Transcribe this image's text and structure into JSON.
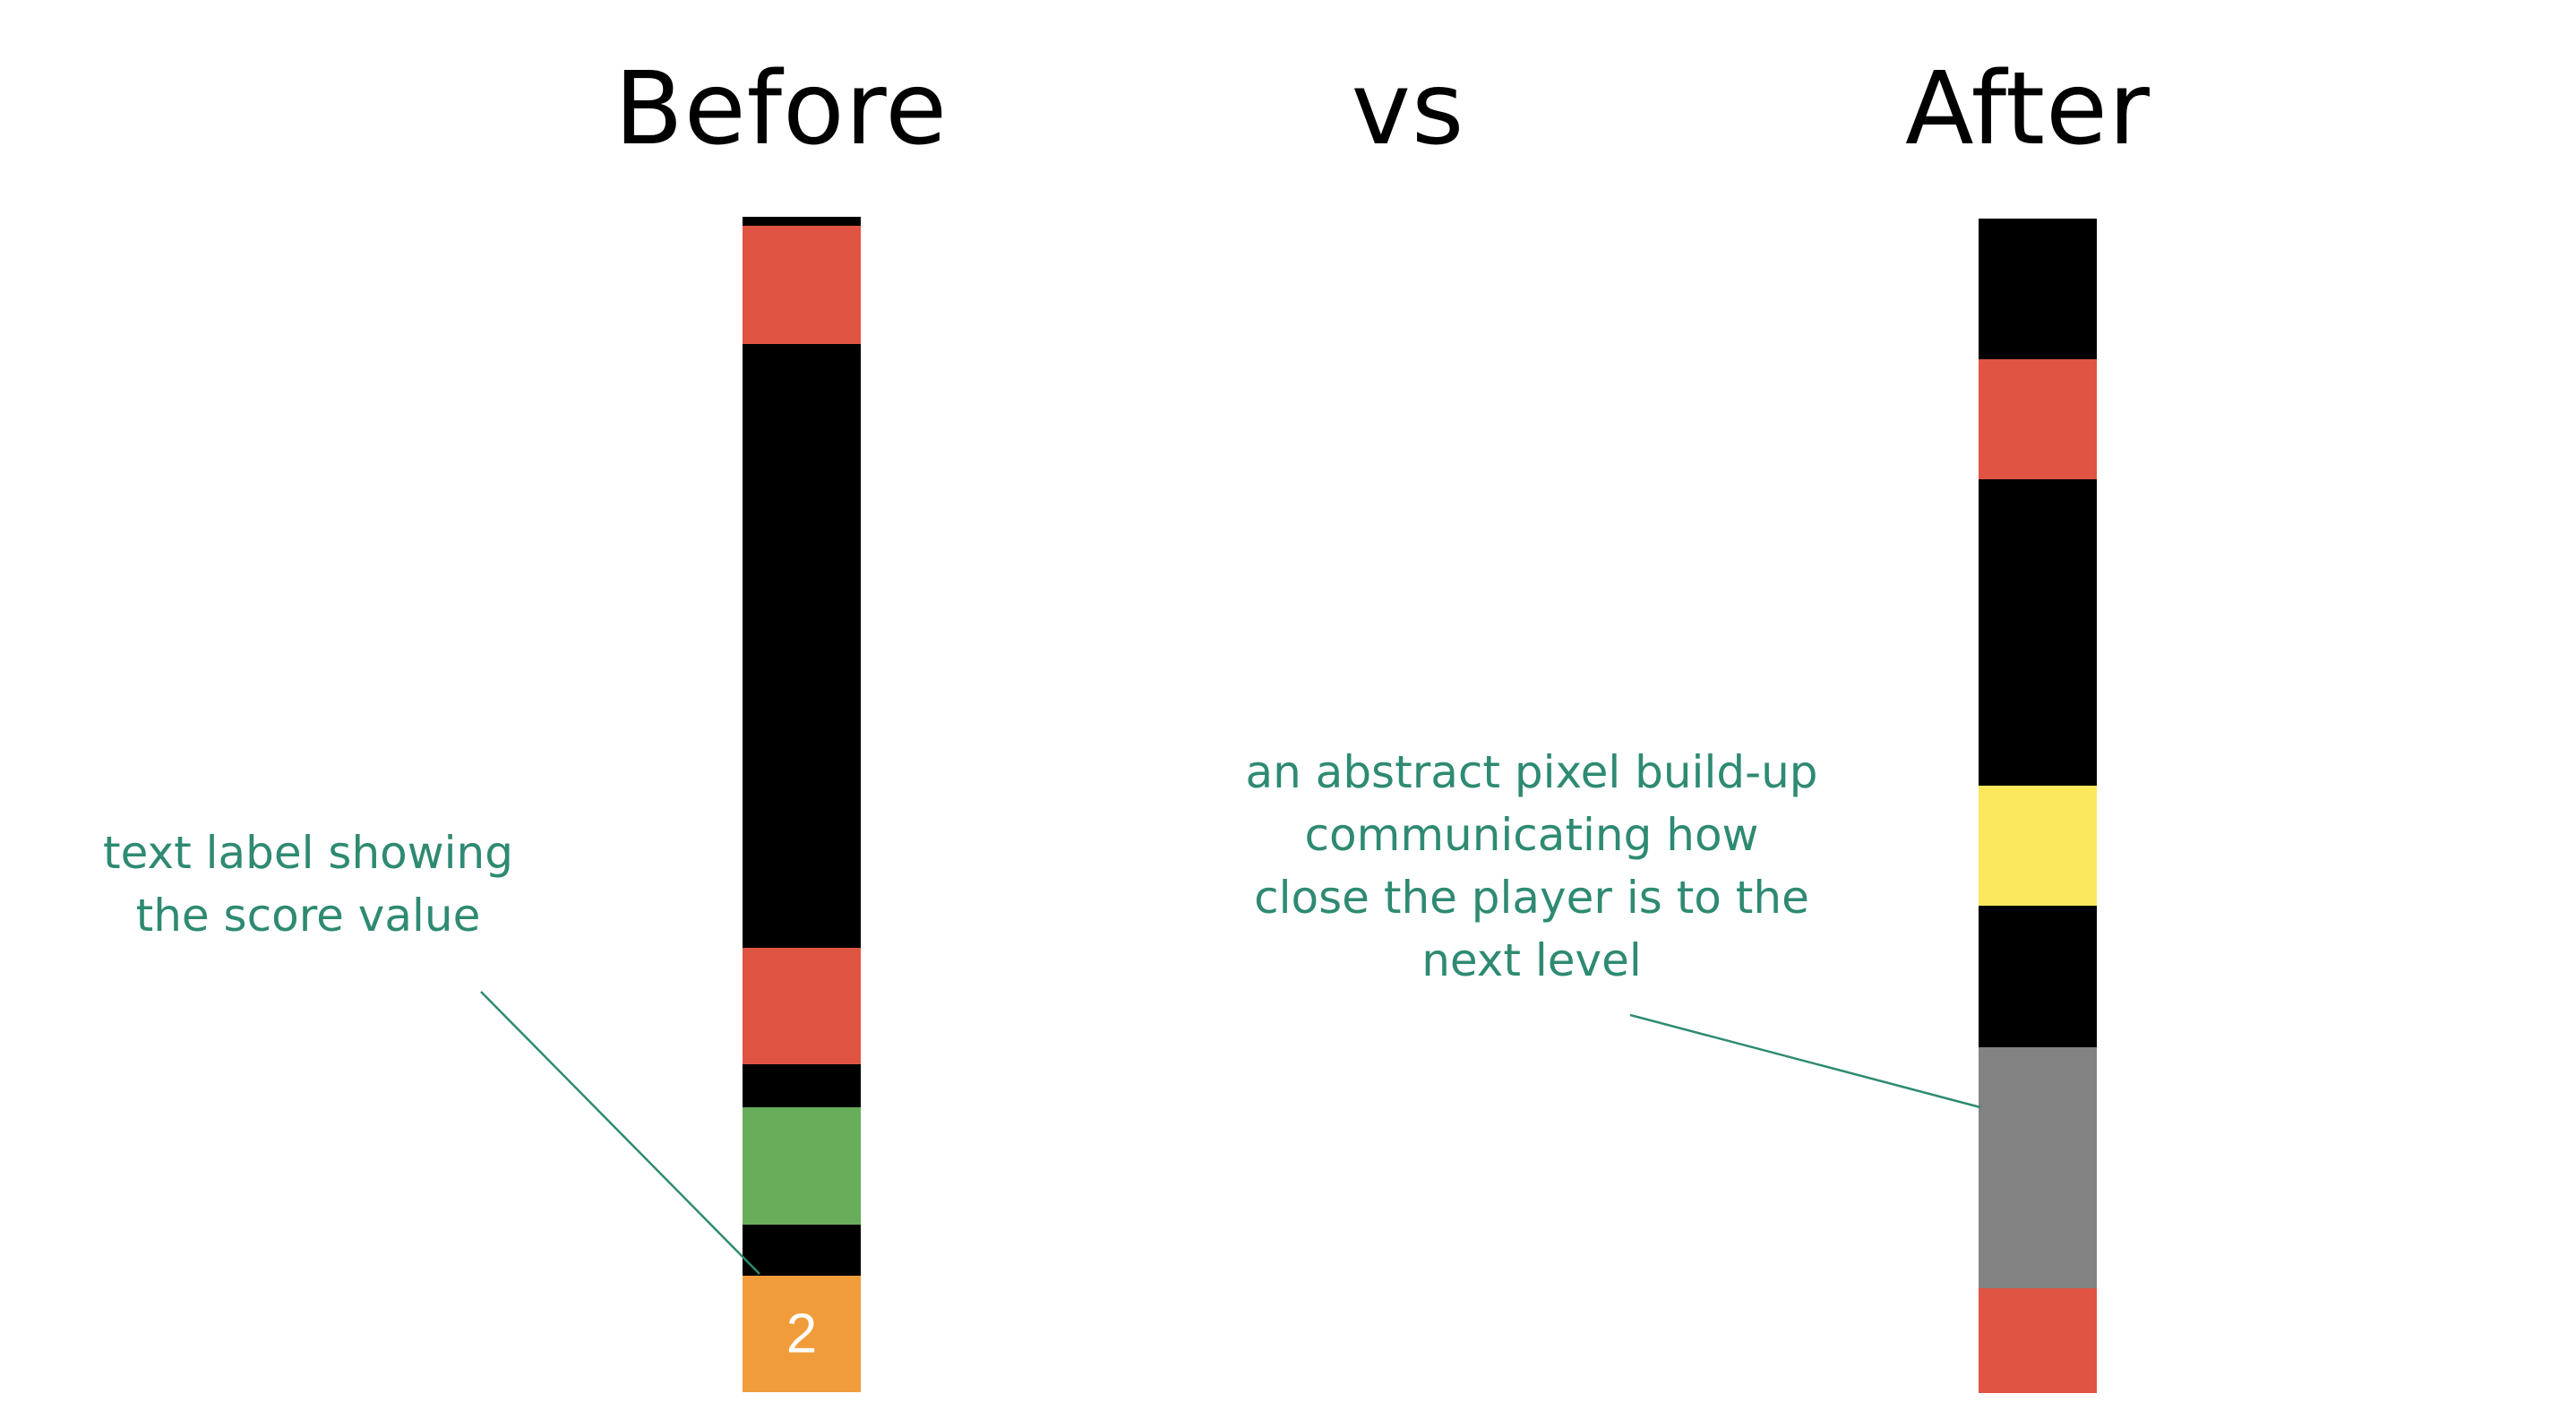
{
  "titles": {
    "before": "Before",
    "vs": "vs",
    "after": "After"
  },
  "annotations": {
    "before_lines": [
      "text label showing",
      "the score value"
    ],
    "after_lines": [
      "an abstract pixel build-up",
      "communicating how",
      "close the player is to the",
      "next level"
    ]
  },
  "before_strip": {
    "segments": [
      {
        "name": "black",
        "color": "#000000",
        "fraction": 0.0076
      },
      {
        "name": "red",
        "color": "#E05444",
        "fraction": 0.1006
      },
      {
        "name": "black",
        "color": "#000000",
        "fraction": 0.5137
      },
      {
        "name": "red",
        "color": "#E05444",
        "fraction": 0.0991
      },
      {
        "name": "black",
        "color": "#000000",
        "fraction": 0.0366
      },
      {
        "name": "green",
        "color": "#68AD5A",
        "fraction": 0.0998
      },
      {
        "name": "black",
        "color": "#000000",
        "fraction": 0.0434
      },
      {
        "name": "orange",
        "color": "#F19C3A",
        "fraction": 0.0991,
        "label": "2"
      }
    ]
  },
  "after_strip": {
    "segments": [
      {
        "name": "black",
        "color": "#000000",
        "fraction": 0.1197
      },
      {
        "name": "red",
        "color": "#E05444",
        "fraction": 0.1022
      },
      {
        "name": "black",
        "color": "#000000",
        "fraction": 0.2609
      },
      {
        "name": "yellow",
        "color": "#FBE85C",
        "fraction": 0.1022
      },
      {
        "name": "black",
        "color": "#000000",
        "fraction": 0.1205
      },
      {
        "name": "gray",
        "color": "#828282",
        "fraction": 0.2052
      },
      {
        "name": "red",
        "color": "#E05444",
        "fraction": 0.0892
      }
    ]
  },
  "colors": {
    "annotation_text": "#2E8A72",
    "leader_line": "#2E8A72",
    "title_text": "#000000"
  }
}
